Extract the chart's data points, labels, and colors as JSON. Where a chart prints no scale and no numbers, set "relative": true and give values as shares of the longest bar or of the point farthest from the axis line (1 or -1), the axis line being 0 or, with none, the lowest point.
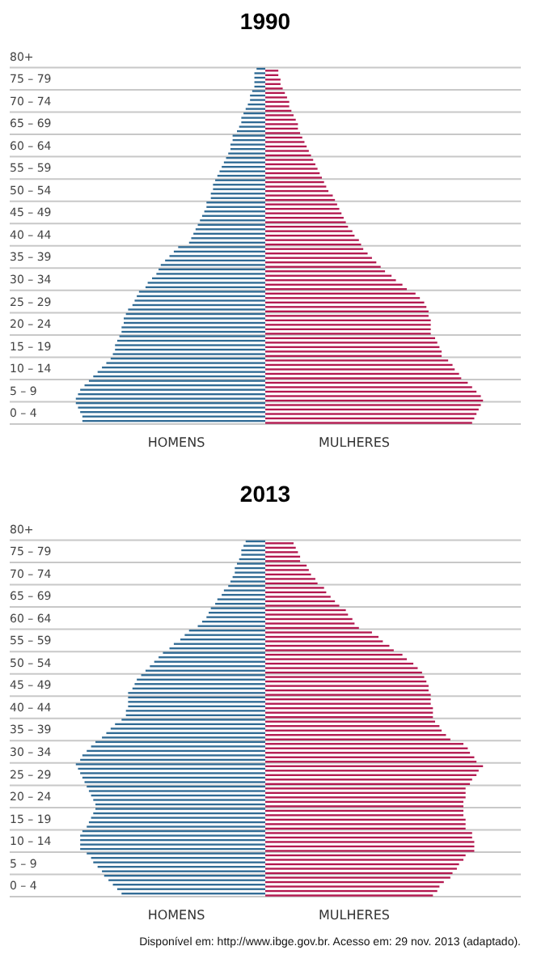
{
  "chart_data": [
    {
      "type": "bar",
      "orientation": "horizontal",
      "relative": true,
      "grid": "y",
      "title": "1990",
      "categories": [
        null,
        null,
        "80+",
        null,
        null,
        null,
        null,
        "75 – 79",
        null,
        null,
        null,
        null,
        "70 – 74",
        null,
        null,
        null,
        null,
        "65 – 69",
        null,
        null,
        null,
        null,
        "60 – 64",
        null,
        null,
        null,
        null,
        "55 – 59",
        null,
        null,
        null,
        null,
        "50 – 54",
        null,
        null,
        null,
        null,
        "45 – 49",
        null,
        null,
        null,
        null,
        "40 – 44",
        null,
        null,
        null,
        null,
        "35 – 39",
        null,
        null,
        null,
        null,
        "30 – 34",
        null,
        null,
        null,
        null,
        "25 – 29",
        null,
        null,
        null,
        null,
        "20 – 24",
        null,
        null,
        null,
        null,
        "15 – 19",
        null,
        null,
        null,
        null,
        "10 – 14",
        null,
        null,
        null,
        null,
        "5 – 9",
        null,
        null,
        null,
        null,
        "0 – 4",
        null,
        null
      ],
      "series": [
        {
          "name": "HOMENS",
          "color": "#2f6a94",
          "values": [
            null,
            null,
            null,
            null,
            null,
            -0.04,
            -0.05,
            -0.05,
            -0.05,
            -0.05,
            -0.06,
            -0.07,
            -0.07,
            -0.08,
            -0.09,
            -0.1,
            -0.11,
            -0.11,
            -0.12,
            -0.13,
            -0.15,
            -0.15,
            -0.16,
            -0.16,
            -0.17,
            -0.18,
            -0.19,
            -0.2,
            -0.21,
            -0.22,
            -0.23,
            -0.24,
            -0.24,
            -0.25,
            -0.25,
            -0.27,
            -0.27,
            -0.28,
            -0.29,
            -0.3,
            -0.31,
            -0.32,
            -0.33,
            -0.34,
            -0.35,
            -0.4,
            -0.42,
            -0.44,
            -0.46,
            -0.48,
            -0.49,
            -0.5,
            -0.52,
            -0.54,
            -0.55,
            -0.58,
            -0.59,
            -0.6,
            -0.61,
            -0.63,
            -0.64,
            -0.65,
            -0.65,
            -0.66,
            -0.66,
            -0.67,
            -0.68,
            -0.69,
            -0.69,
            -0.7,
            -0.71,
            -0.73,
            -0.75,
            -0.77,
            -0.79,
            -0.81,
            -0.83,
            -0.85,
            -0.86,
            -0.87,
            -0.87,
            -0.86,
            -0.85,
            -0.84,
            -0.84
          ]
        },
        {
          "name": "MULHERES",
          "color": "#b3184f",
          "values": [
            null,
            null,
            null,
            null,
            null,
            0.06,
            0.06,
            0.07,
            0.07,
            0.08,
            0.09,
            0.1,
            0.11,
            0.11,
            0.12,
            0.13,
            0.14,
            0.15,
            0.15,
            0.16,
            0.17,
            0.18,
            0.19,
            0.2,
            0.21,
            0.22,
            0.23,
            0.24,
            0.25,
            0.26,
            0.27,
            0.28,
            0.29,
            0.31,
            0.32,
            0.33,
            0.34,
            0.35,
            0.36,
            0.37,
            0.38,
            0.4,
            0.41,
            0.43,
            0.44,
            0.45,
            0.47,
            0.49,
            0.51,
            0.53,
            0.55,
            0.58,
            0.6,
            0.63,
            0.65,
            0.69,
            0.71,
            0.73,
            0.74,
            0.75,
            0.75,
            0.76,
            0.76,
            0.76,
            0.76,
            0.78,
            0.79,
            0.8,
            0.81,
            0.81,
            0.84,
            0.86,
            0.87,
            0.89,
            0.9,
            0.93,
            0.95,
            0.97,
            0.99,
            1,
            0.99,
            0.98,
            0.97,
            0.96,
            0.95
          ]
        }
      ]
    },
    {
      "type": "bar",
      "orientation": "horizontal",
      "relative": true,
      "grid": "y",
      "title": "2013",
      "categories": [
        null,
        null,
        "80+",
        null,
        null,
        null,
        null,
        "75 – 79",
        null,
        null,
        null,
        null,
        "70 – 74",
        null,
        null,
        null,
        null,
        "65 – 69",
        null,
        null,
        null,
        null,
        "60 – 64",
        null,
        null,
        null,
        null,
        "55 – 59",
        null,
        null,
        null,
        null,
        "50 – 54",
        null,
        null,
        null,
        null,
        "45 – 49",
        null,
        null,
        null,
        null,
        "40 – 44",
        null,
        null,
        null,
        null,
        "35 – 39",
        null,
        null,
        null,
        null,
        "30 – 34",
        null,
        null,
        null,
        null,
        "25 – 29",
        null,
        null,
        null,
        null,
        "20 – 24",
        null,
        null,
        null,
        null,
        "15 – 19",
        null,
        null,
        null,
        null,
        "10 – 14",
        null,
        null,
        null,
        null,
        "5 – 9",
        null,
        null,
        null,
        null,
        "0 – 4",
        null,
        null
      ],
      "series": [
        {
          "name": "HOMENS",
          "color": "#2f6a94",
          "values": [
            null,
            null,
            null,
            null,
            null,
            -0.09,
            -0.1,
            -0.11,
            -0.11,
            -0.12,
            -0.13,
            -0.14,
            -0.14,
            -0.15,
            -0.16,
            -0.17,
            -0.19,
            -0.2,
            -0.22,
            -0.23,
            -0.25,
            -0.26,
            -0.27,
            -0.29,
            -0.31,
            -0.35,
            -0.37,
            -0.39,
            -0.42,
            -0.44,
            -0.47,
            -0.49,
            -0.51,
            -0.53,
            -0.55,
            -0.57,
            -0.59,
            -0.6,
            -0.61,
            -0.63,
            -0.63,
            -0.63,
            -0.63,
            -0.64,
            -0.64,
            -0.66,
            -0.69,
            -0.71,
            -0.73,
            -0.75,
            -0.78,
            -0.8,
            -0.82,
            -0.84,
            -0.85,
            -0.87,
            -0.86,
            -0.85,
            -0.84,
            -0.83,
            -0.82,
            -0.81,
            -0.8,
            -0.79,
            -0.78,
            -0.78,
            -0.79,
            -0.8,
            -0.81,
            -0.82,
            -0.84,
            -0.85,
            -0.85,
            -0.85,
            -0.85,
            -0.82,
            -0.8,
            -0.79,
            -0.77,
            -0.75,
            -0.74,
            -0.72,
            -0.7,
            -0.68,
            -0.66
          ]
        },
        {
          "name": "MULHERES",
          "color": "#b3184f",
          "values": [
            null,
            null,
            null,
            null,
            null,
            0.13,
            0.14,
            0.15,
            0.16,
            0.16,
            0.19,
            0.2,
            0.21,
            0.23,
            0.24,
            0.27,
            0.28,
            0.3,
            0.32,
            0.34,
            0.37,
            0.38,
            0.4,
            0.41,
            0.43,
            0.49,
            0.52,
            0.54,
            0.57,
            0.59,
            0.63,
            0.65,
            0.68,
            0.7,
            0.72,
            0.73,
            0.74,
            0.75,
            0.75,
            0.76,
            0.76,
            0.76,
            0.77,
            0.77,
            0.77,
            0.78,
            0.8,
            0.81,
            0.83,
            0.85,
            0.91,
            0.93,
            0.94,
            0.96,
            0.97,
            1,
            0.98,
            0.97,
            0.95,
            0.94,
            0.92,
            0.92,
            0.92,
            0.91,
            0.91,
            0.91,
            0.91,
            0.92,
            0.92,
            0.92,
            0.95,
            0.95,
            0.96,
            0.96,
            0.96,
            0.92,
            0.91,
            0.89,
            0.88,
            0.86,
            0.85,
            0.82,
            0.8,
            0.79,
            0.77
          ]
        }
      ],
      "annotations": [
        "Disponível em: http://www.ibge.gov.br. Acesso em: 29 nov. 2013 (adaptado)."
      ]
    }
  ]
}
